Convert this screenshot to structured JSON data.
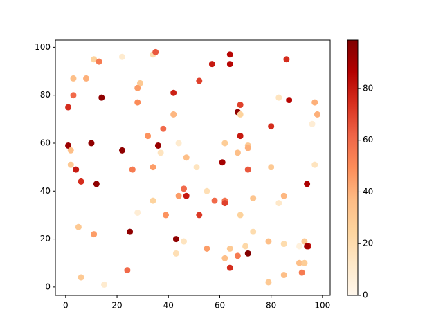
{
  "chart_data": {
    "type": "scatter",
    "x": [
      64,
      22,
      11,
      13,
      34,
      35,
      57,
      64,
      86,
      3,
      8,
      52,
      29,
      28,
      42,
      3,
      14,
      83,
      87,
      97,
      28,
      68,
      1,
      67,
      68,
      42,
      98,
      96,
      80,
      38,
      68,
      32,
      1,
      36,
      10,
      44,
      62,
      71,
      71,
      2,
      22,
      67,
      37,
      47,
      61,
      2,
      97,
      51,
      34,
      80,
      4,
      26,
      71,
      6,
      94,
      12,
      46,
      55,
      44,
      47,
      85,
      73,
      34,
      58,
      62,
      62,
      83,
      39,
      52,
      68,
      28,
      5,
      25,
      11,
      73,
      43,
      46,
      79,
      93,
      94.5,
      94,
      85,
      70,
      91,
      55,
      64,
      43,
      71,
      67,
      62,
      91,
      93,
      64,
      24,
      92,
      85,
      6,
      79,
      15
    ],
    "values": [
      97,
      96,
      95,
      94,
      97,
      98,
      93,
      93,
      95,
      87,
      87,
      86,
      85,
      83,
      81,
      80,
      79,
      79,
      78,
      77,
      77,
      76,
      75,
      73,
      72,
      72,
      72,
      68,
      67,
      66,
      63,
      63,
      59,
      59,
      60,
      60,
      60,
      59,
      58,
      57,
      57,
      56,
      56,
      54,
      52,
      51,
      51,
      50,
      50,
      50,
      49,
      49,
      49,
      44,
      43,
      43,
      41,
      40,
      38,
      38,
      38,
      37,
      36,
      36,
      36,
      35,
      35,
      30,
      30,
      30,
      31,
      25,
      23,
      22,
      23,
      20,
      19,
      19,
      19,
      17,
      17,
      18,
      17,
      17,
      16,
      16,
      14,
      14,
      13,
      12,
      10,
      10,
      8,
      7,
      6,
      5,
      4,
      2,
      1
    ],
    "color_values": [
      85,
      10,
      25,
      55,
      20,
      65,
      80,
      85,
      75,
      35,
      40,
      70,
      30,
      45,
      78,
      60,
      95,
      15,
      85,
      40,
      50,
      70,
      75,
      95,
      25,
      38,
      40,
      8,
      75,
      60,
      80,
      48,
      92,
      93,
      95,
      10,
      28,
      30,
      40,
      35,
      95,
      35,
      15,
      35,
      90,
      30,
      15,
      15,
      45,
      30,
      80,
      55,
      65,
      75,
      88,
      95,
      60,
      18,
      45,
      80,
      38,
      32,
      25,
      60,
      58,
      70,
      12,
      48,
      72,
      25,
      8,
      30,
      95,
      45,
      20,
      95,
      15,
      35,
      30,
      82,
      90,
      20,
      22,
      5,
      45,
      30,
      18,
      98,
      55,
      35,
      35,
      28,
      75,
      60,
      55,
      35,
      30,
      30,
      10
    ],
    "colormap": "OrRd",
    "xlim": [
      -4,
      103
    ],
    "ylim": [
      -3.5,
      103
    ],
    "xticks": [
      0,
      20,
      40,
      60,
      80,
      100
    ],
    "yticks": [
      0,
      20,
      40,
      60,
      80,
      100
    ],
    "clim": [
      0,
      98.7
    ],
    "cticks": [
      0,
      20,
      40,
      60,
      80
    ]
  }
}
